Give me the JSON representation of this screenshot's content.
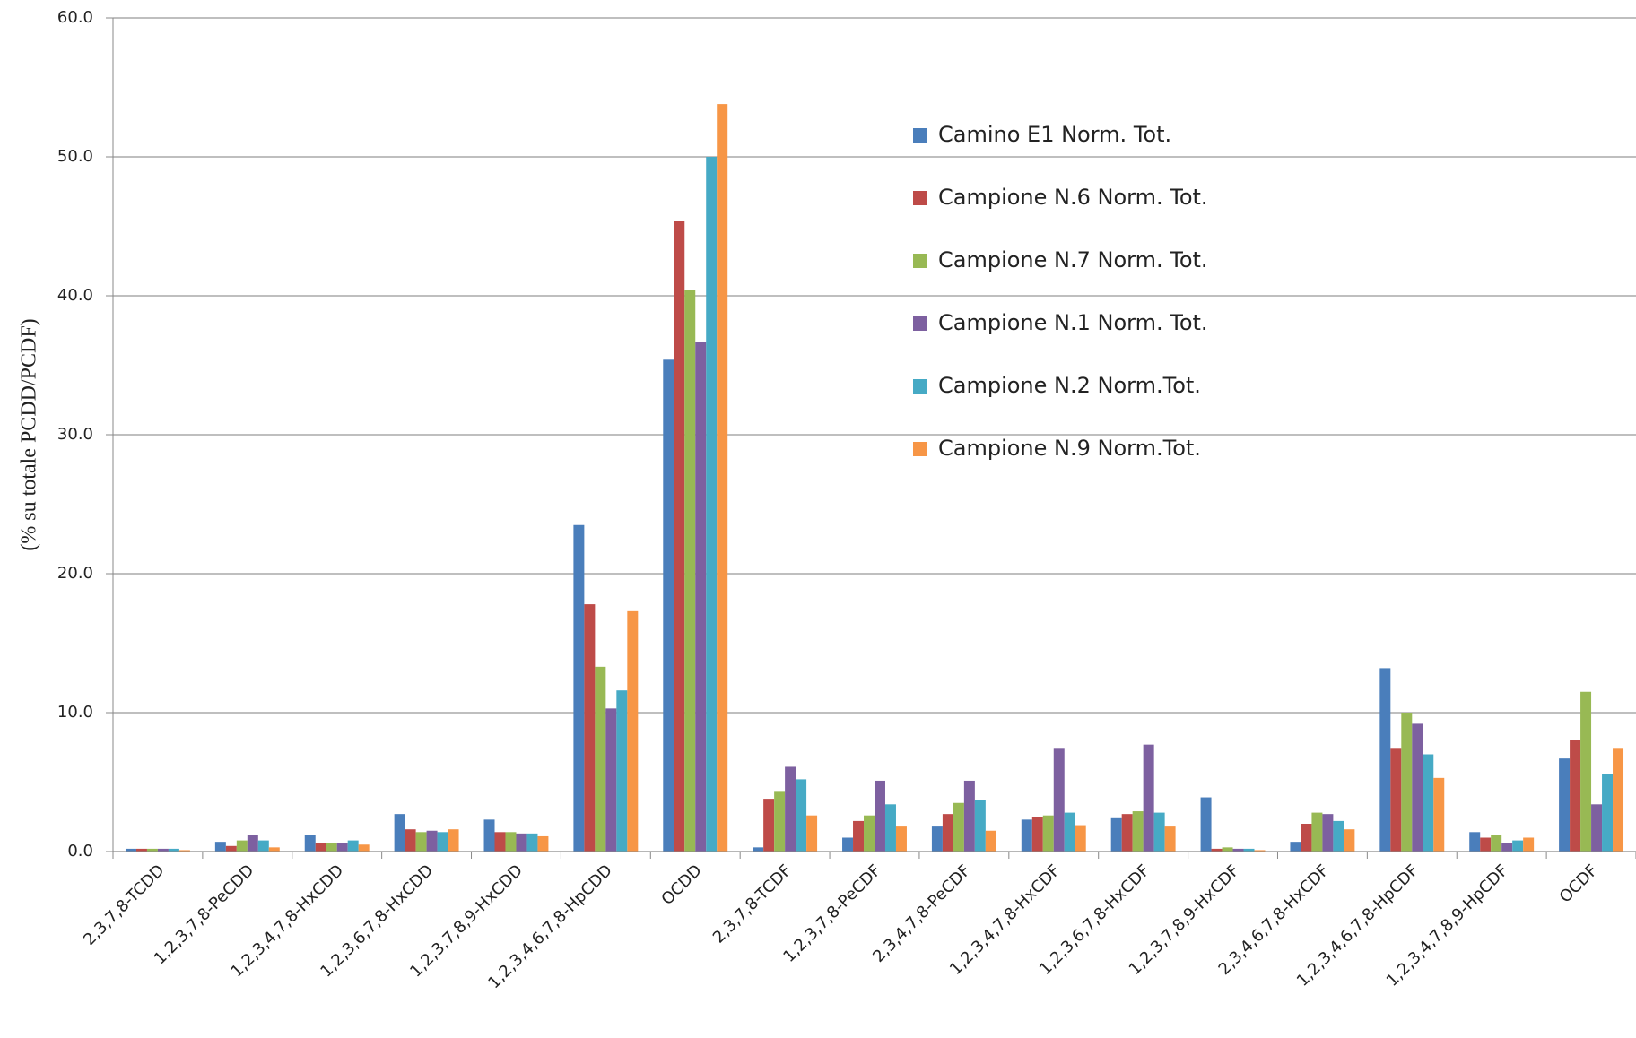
{
  "chart_data": {
    "type": "bar",
    "y_label": "(% su totale PCDD/PCDF)",
    "categories": [
      "2,3,7,8-TCDD",
      "1,2,3,7,8-PeCDD",
      "1,2,3,4,7,8-HxCDD",
      "1,2,3,6,7,8-HxCDD",
      "1,2,3,7,8,9-HxCDD",
      "1,2,3,4,6,7,8-HpCDD",
      "OCDD",
      "2,3,7,8-TCDF",
      "1,2,3,7,8-PeCDF",
      "2,3,4,7,8-PeCDF",
      "1,2,3,4,7,8-HxCDF",
      "1,2,3,6,7,8-HxCDF",
      "1,2,3,7,8,9-HxCDF",
      "2,3,4,6,7,8-HxCDF",
      "1,2,3,4,6,7,8-HpCDF",
      "1,2,3,4,7,8,9-HpCDF",
      "OCDF"
    ],
    "series": [
      {
        "name": "Camino E1 Norm. Tot.",
        "color": "#4a7ebb",
        "values": [
          0.2,
          0.7,
          1.2,
          2.7,
          2.3,
          23.5,
          35.4,
          0.3,
          1.0,
          1.8,
          2.3,
          2.4,
          3.9,
          0.7,
          13.2,
          1.4,
          6.7
        ]
      },
      {
        "name": "Campione N.6 Norm. Tot.",
        "color": "#be4b48",
        "values": [
          0.2,
          0.4,
          0.6,
          1.6,
          1.4,
          17.8,
          45.4,
          3.8,
          2.2,
          2.7,
          2.5,
          2.7,
          0.2,
          2.0,
          7.4,
          1.0,
          8.0
        ]
      },
      {
        "name": "Campione N.7 Norm. Tot.",
        "color": "#98b954",
        "values": [
          0.2,
          0.8,
          0.6,
          1.4,
          1.4,
          13.3,
          40.4,
          4.3,
          2.6,
          3.5,
          2.6,
          2.9,
          0.3,
          2.8,
          10.0,
          1.2,
          11.5
        ]
      },
      {
        "name": "Campione N.1 Norm. Tot.",
        "color": "#7d60a0",
        "values": [
          0.2,
          1.2,
          0.6,
          1.5,
          1.3,
          10.3,
          36.7,
          6.1,
          5.1,
          5.1,
          7.4,
          7.7,
          0.2,
          2.7,
          9.2,
          0.6,
          3.4
        ]
      },
      {
        "name": "Campione N.2 Norm.Tot.",
        "color": "#46aac5",
        "values": [
          0.2,
          0.8,
          0.8,
          1.4,
          1.3,
          11.6,
          50.0,
          5.2,
          3.4,
          3.7,
          2.8,
          2.8,
          0.2,
          2.2,
          7.0,
          0.8,
          5.6
        ]
      },
      {
        "name": "Campione N.9 Norm.Tot.",
        "color": "#f79646",
        "values": [
          0.1,
          0.3,
          0.5,
          1.6,
          1.1,
          17.3,
          53.8,
          2.6,
          1.8,
          1.5,
          1.9,
          1.8,
          0.1,
          1.6,
          5.3,
          1.0,
          7.4
        ]
      }
    ],
    "ylim": [
      0,
      60
    ],
    "yticks": [
      {
        "value": 0,
        "label": "0.0"
      },
      {
        "value": 10,
        "label": "10.0"
      },
      {
        "value": 20,
        "label": "20.0"
      },
      {
        "value": 30,
        "label": "30.0"
      },
      {
        "value": 40,
        "label": "40.0"
      },
      {
        "value": 50,
        "label": "50.0"
      },
      {
        "value": 60,
        "label": "60.0"
      }
    ],
    "grid": true,
    "legend_position": "upper-center"
  }
}
